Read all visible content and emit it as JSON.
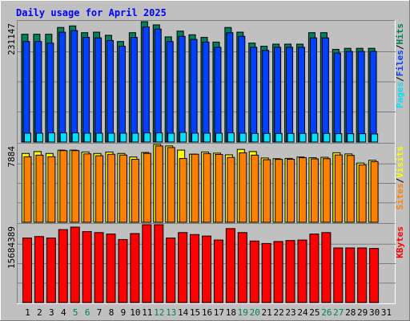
{
  "chart_data": [
    {
      "type": "bar",
      "panel": "hits",
      "title": "Daily usage for April 2025",
      "ylabel_parts": [
        {
          "text": "Pages",
          "color_key": "pages"
        },
        {
          "text": "/",
          "color_key": "sep"
        },
        {
          "text": "Files",
          "color_key": "files"
        },
        {
          "text": "/",
          "color_key": "sep"
        },
        {
          "text": "Hits",
          "color_key": "hits"
        }
      ],
      "max_label": "231147",
      "ylim": [
        0,
        231147
      ],
      "categories": [
        "1",
        "2",
        "3",
        "4",
        "5",
        "6",
        "7",
        "8",
        "9",
        "10",
        "11",
        "12",
        "13",
        "14",
        "15",
        "16",
        "17",
        "18",
        "19",
        "20",
        "21",
        "22",
        "23",
        "24",
        "25",
        "26",
        "27",
        "28",
        "29",
        "30",
        "31"
      ],
      "weekend_days": [
        5,
        6,
        12,
        13,
        19,
        20,
        26,
        27
      ],
      "series": [
        {
          "name": "Hits",
          "color_key": "hits",
          "values": [
            207000,
            207000,
            207000,
            220000,
            223000,
            210000,
            211000,
            205000,
            193000,
            210000,
            231147,
            225000,
            202000,
            213000,
            206000,
            201000,
            192000,
            220000,
            211000,
            190000,
            184000,
            188000,
            188000,
            188000,
            210000,
            210000,
            178000,
            180000,
            180000,
            180000,
            null
          ]
        },
        {
          "name": "Files",
          "color_key": "files",
          "values": [
            193000,
            193000,
            190000,
            211000,
            214000,
            201000,
            200000,
            195000,
            184000,
            201000,
            221000,
            217000,
            193000,
            203000,
            197000,
            192000,
            182000,
            210000,
            203000,
            182000,
            176000,
            182000,
            182000,
            182000,
            200000,
            200000,
            171000,
            174000,
            174000,
            174000,
            null
          ]
        },
        {
          "name": "Pages",
          "color_key": "pages",
          "values": [
            17000,
            17000,
            17500,
            17500,
            17500,
            17000,
            17000,
            17000,
            17000,
            17000,
            17500,
            17500,
            17000,
            18500,
            17000,
            17000,
            17000,
            17500,
            17000,
            16500,
            16500,
            16500,
            16500,
            16500,
            17000,
            16500,
            16000,
            16000,
            16000,
            15500,
            null
          ]
        }
      ]
    },
    {
      "type": "bar",
      "panel": "visits",
      "ylabel_parts": [
        {
          "text": "Sites",
          "color_key": "sites"
        },
        {
          "text": "/",
          "color_key": "sep"
        },
        {
          "text": "Visits",
          "color_key": "visits"
        }
      ],
      "max_label": "7884",
      "ylim": [
        0,
        7884
      ],
      "series": [
        {
          "name": "Visits",
          "color_key": "visits",
          "values": [
            6970,
            7160,
            6970,
            7310,
            7310,
            7120,
            6970,
            7120,
            6970,
            6610,
            7070,
            7884,
            7730,
            7310,
            6900,
            7120,
            7000,
            6830,
            7380,
            7160,
            6510,
            6440,
            6470,
            6610,
            6540,
            6580,
            7040,
            6920,
            6000,
            6280,
            null
          ]
        },
        {
          "name": "Sites",
          "color_key": "sites",
          "values": [
            6640,
            6800,
            6640,
            7260,
            7260,
            6930,
            6740,
            6890,
            6810,
            6380,
            6980,
            7730,
            7570,
            6460,
            6890,
            6960,
            6870,
            6570,
            7040,
            6800,
            6340,
            6370,
            6380,
            6540,
            6420,
            6440,
            6820,
            6770,
            5810,
            6140,
            null
          ]
        }
      ]
    },
    {
      "type": "bar",
      "panel": "kbytes",
      "ylabel_parts": [
        {
          "text": "KBytes",
          "color_key": "kbytes"
        }
      ],
      "max_label": "15684389",
      "ylim": [
        0,
        15684389
      ],
      "series": [
        {
          "name": "KBytes",
          "color_key": "kbytes",
          "values": [
            13000000,
            13300000,
            13000000,
            14700000,
            15200000,
            14300000,
            14100000,
            13800000,
            12700000,
            13900000,
            15684389,
            15684389,
            13000000,
            14100000,
            13700000,
            13400000,
            12600000,
            14900000,
            14100000,
            12400000,
            11900000,
            12300000,
            12500000,
            12600000,
            13800000,
            14100000,
            11000000,
            11000000,
            11000000,
            10900000,
            null
          ]
        }
      ]
    }
  ],
  "colors": {
    "hits": "#00805c",
    "files": "#0040ff",
    "pages": "#00e0ff",
    "visits": "#ffff00",
    "sites": "#ff8000",
    "kbytes": "#ff0000",
    "sep": "#000000",
    "title": "#0000ff",
    "weekend_day": "#00805c",
    "weekday": "#000000",
    "plot_bg": "#c0c0c0",
    "outer_bg": "#c0c0c0"
  }
}
